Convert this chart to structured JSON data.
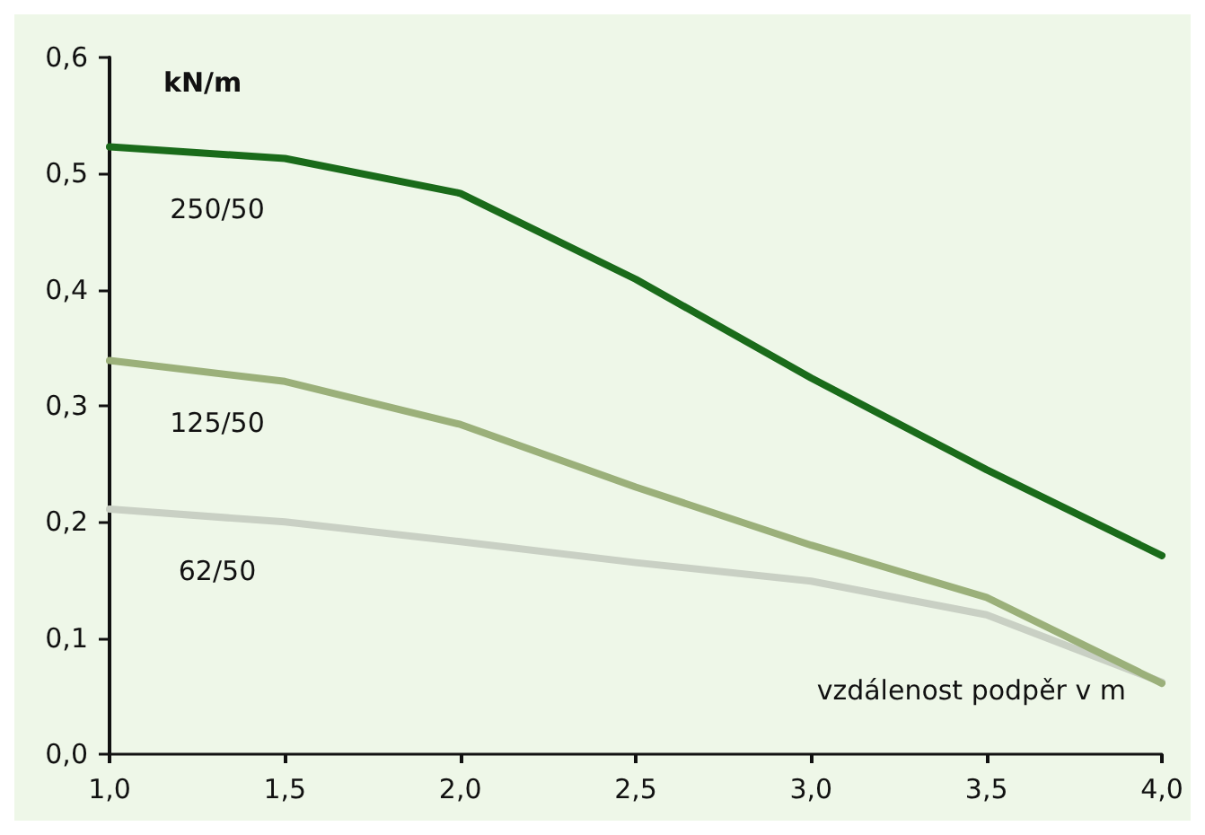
{
  "chart_data": {
    "type": "line",
    "xlabel": "vzdálenost podpěr v m",
    "ylabel": "kN/m",
    "x": [
      1.0,
      1.5,
      2.0,
      2.5,
      3.0,
      3.5,
      4.0
    ],
    "series": [
      {
        "name": "250/50",
        "color": "#1a6b1a",
        "values": [
          0.523,
          0.513,
          0.483,
          0.409,
          0.324,
          0.245,
          0.171
        ]
      },
      {
        "name": "125/50",
        "color": "#9bb07a",
        "values": [
          0.339,
          0.321,
          0.284,
          0.23,
          0.18,
          0.135,
          0.061
        ]
      },
      {
        "name": "62/50",
        "color": "#c9d0c4",
        "values": [
          0.211,
          0.2,
          0.183,
          0.165,
          0.149,
          0.12,
          0.062
        ]
      }
    ],
    "xlim": [
      1.0,
      4.0
    ],
    "ylim": [
      0,
      0.6
    ],
    "xticks": [
      {
        "value": 1.0,
        "label": "1,0"
      },
      {
        "value": 1.5,
        "label": "1,5"
      },
      {
        "value": 2.0,
        "label": "2,0"
      },
      {
        "value": 2.5,
        "label": "2,5"
      },
      {
        "value": 3.0,
        "label": "3,0"
      },
      {
        "value": 3.5,
        "label": "3,5"
      },
      {
        "value": 4.0,
        "label": "4,0"
      }
    ],
    "yticks": [
      {
        "value": 0,
        "label": "0,0"
      },
      {
        "value": 0.1,
        "label": "0,1"
      },
      {
        "value": 0.2,
        "label": "0,2"
      },
      {
        "value": 0.3,
        "label": "0,3"
      },
      {
        "value": 0.4,
        "label": "0,4"
      },
      {
        "value": 0.5,
        "label": "0,5"
      },
      {
        "value": 0.6,
        "label": "0,6"
      }
    ],
    "grid": false,
    "legend": false,
    "marker": "none",
    "line_style": "solid"
  }
}
